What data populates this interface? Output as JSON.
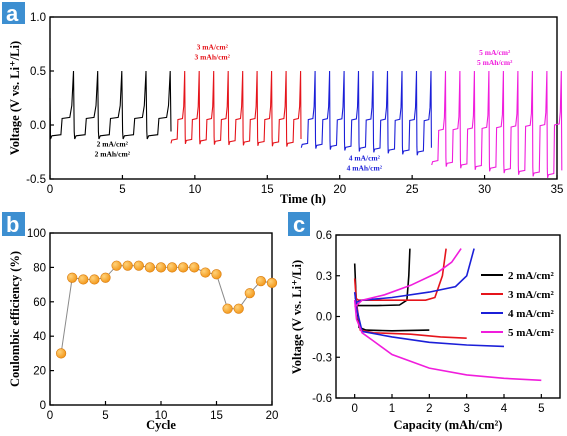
{
  "panels": {
    "a": "a",
    "b": "b",
    "c": "c"
  },
  "chart_data": [
    {
      "id": "a",
      "type": "line",
      "xlabel": "Time (h)",
      "ylabel": "Voltage (V vs. Li⁺/Li)",
      "xlim": [
        0,
        35
      ],
      "ylim": [
        -0.5,
        1.0
      ],
      "xticks": [
        0,
        5,
        10,
        15,
        20,
        25,
        30,
        35
      ],
      "yticks": [
        -0.5,
        0.0,
        0.5,
        1.0
      ],
      "ytick_labels": [
        "-0.5",
        "0.0",
        "0.5",
        "1.0"
      ],
      "cycle_start_times": [
        0,
        1.67,
        3.33,
        5,
        6.67,
        8.33,
        9.33,
        10.33,
        11.33,
        12.33,
        13.33,
        14.33,
        15.33,
        16.33,
        17.33,
        18.33,
        19.33,
        20.33,
        21.33,
        22.33,
        23.33,
        24.33,
        25.33,
        26.33,
        27.33,
        28.33,
        29.33,
        30.33,
        31.33,
        32.33,
        33.33,
        34.33
      ],
      "series": [
        {
          "color": "#000000",
          "t_start": 0.0,
          "t_end": 8.33,
          "cycle_hours": 1.67,
          "plating_V": [
            -0.1,
            -0.1
          ],
          "stripping_V": [
            0.06,
            0.06
          ]
        },
        {
          "color": "#e5141b",
          "t_start": 8.33,
          "t_end": 17.33,
          "cycle_hours": 1.0,
          "plating_V": [
            -0.14,
            -0.17
          ],
          "stripping_V": [
            0.05,
            0.05
          ]
        },
        {
          "color": "#1b1fd8",
          "t_start": 17.33,
          "t_end": 26.33,
          "cycle_hours": 1.0,
          "plating_V": [
            -0.18,
            -0.25
          ],
          "stripping_V": [
            0.05,
            0.04
          ]
        },
        {
          "color": "#f01ddc",
          "t_start": 26.33,
          "t_end": 35.0,
          "cycle_hours": 1.0,
          "plating_V": [
            -0.34,
            -0.46
          ],
          "stripping_V": [
            -0.05,
            0.0
          ]
        }
      ],
      "annotations": [
        {
          "lines": [
            "2 mA/cm²",
            "2 mAh/cm²"
          ],
          "color": "#000000",
          "x": 4.3,
          "y": -0.2
        },
        {
          "lines": [
            "3 mA/cm²",
            "3 mAh/cm²"
          ],
          "color": "#e5141b",
          "x": 11.2,
          "y": 0.7
        },
        {
          "lines": [
            "4 mA/cm²",
            "4 mAh/cm²"
          ],
          "color": "#1b1fd8",
          "x": 21.7,
          "y": -0.33
        },
        {
          "lines": [
            "5 mA/cm²",
            "5 mAh/cm²"
          ],
          "color": "#f01ddc",
          "x": 30.7,
          "y": 0.65
        }
      ]
    },
    {
      "id": "b",
      "type": "scatter",
      "xlabel": "Cycle",
      "ylabel": "Coulombic efficiency (%)",
      "xlim": [
        0,
        20
      ],
      "ylim": [
        0,
        100
      ],
      "xticks": [
        0,
        5,
        10,
        15,
        20
      ],
      "yticks": [
        0,
        20,
        40,
        60,
        80,
        100
      ],
      "marker_color": "#f39a1e",
      "x": [
        1,
        2,
        3,
        4,
        5,
        6,
        7,
        8,
        9,
        10,
        11,
        12,
        13,
        14,
        15,
        16,
        17,
        18,
        19,
        20
      ],
      "y": [
        30,
        74,
        73,
        73,
        74,
        81,
        81,
        81,
        80,
        80,
        80,
        80,
        80,
        77,
        76,
        56,
        56,
        65,
        72,
        71
      ]
    },
    {
      "id": "c",
      "type": "line",
      "xlabel": "Capacity (mAh/cm²)",
      "ylabel": "Voltage (V vs. Li⁺/Li)",
      "xlim": [
        -0.5,
        5.5
      ],
      "ylim": [
        -0.6,
        0.6
      ],
      "xticks": [
        0,
        1,
        2,
        3,
        4,
        5
      ],
      "yticks": [
        -0.6,
        -0.3,
        0.0,
        0.3,
        0.6
      ],
      "ytick_labels": [
        "-0.6",
        "-0.3",
        "0.0",
        "0.3",
        "0.6"
      ],
      "legend_position": "right",
      "series": [
        {
          "name": "2 mA/cm²",
          "color": "#000000",
          "discharge": [
            [
              0,
              0.39
            ],
            [
              0.04,
              0.12
            ],
            [
              0.12,
              -0.08
            ],
            [
              0.3,
              -0.1
            ],
            [
              1.0,
              -0.105
            ],
            [
              2.0,
              -0.1
            ]
          ],
          "charge": [
            [
              0,
              0.12
            ],
            [
              0.1,
              0.08
            ],
            [
              0.6,
              0.08
            ],
            [
              1.2,
              0.085
            ],
            [
              1.4,
              0.12
            ],
            [
              1.45,
              0.3
            ],
            [
              1.48,
              0.5
            ]
          ]
        },
        {
          "name": "3 mA/cm²",
          "color": "#e5141b",
          "discharge": [
            [
              0,
              0.28
            ],
            [
              0.05,
              0.1
            ],
            [
              0.15,
              -0.1
            ],
            [
              0.5,
              -0.12
            ],
            [
              1.5,
              -0.13
            ],
            [
              2.3,
              -0.15
            ],
            [
              3.0,
              -0.16
            ]
          ],
          "charge": [
            [
              0,
              0.14
            ],
            [
              0.1,
              0.12
            ],
            [
              1.0,
              0.12
            ],
            [
              1.9,
              0.12
            ],
            [
              2.15,
              0.14
            ],
            [
              2.35,
              0.3
            ],
            [
              2.45,
              0.5
            ]
          ]
        },
        {
          "name": "4 mA/cm²",
          "color": "#1b1fd8",
          "discharge": [
            [
              0,
              0.18
            ],
            [
              0.06,
              0.05
            ],
            [
              0.2,
              -0.11
            ],
            [
              1.0,
              -0.15
            ],
            [
              2.0,
              -0.19
            ],
            [
              3.0,
              -0.21
            ],
            [
              4.0,
              -0.22
            ]
          ],
          "charge": [
            [
              0,
              0.1
            ],
            [
              0.2,
              0.12
            ],
            [
              1.0,
              0.14
            ],
            [
              2.0,
              0.18
            ],
            [
              2.7,
              0.22
            ],
            [
              3.0,
              0.3
            ],
            [
              3.2,
              0.5
            ]
          ]
        },
        {
          "name": "5 mA/cm²",
          "color": "#f01ddc",
          "discharge": [
            [
              0,
              0.12
            ],
            [
              0.05,
              -0.02
            ],
            [
              0.2,
              -0.12
            ],
            [
              0.5,
              -0.18
            ],
            [
              1.0,
              -0.28
            ],
            [
              2.0,
              -0.38
            ],
            [
              3.0,
              -0.43
            ],
            [
              4.0,
              -0.455
            ],
            [
              5.0,
              -0.47
            ]
          ],
          "charge": [
            [
              0,
              0.07
            ],
            [
              0.2,
              0.12
            ],
            [
              0.8,
              0.16
            ],
            [
              1.5,
              0.23
            ],
            [
              2.2,
              0.32
            ],
            [
              2.6,
              0.4
            ],
            [
              2.85,
              0.5
            ]
          ]
        }
      ]
    }
  ]
}
